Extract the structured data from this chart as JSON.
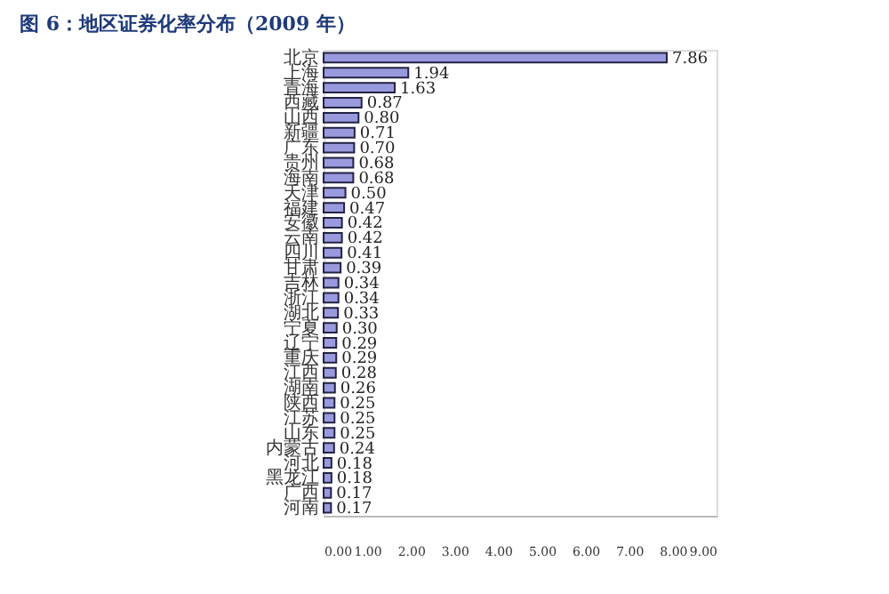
{
  "chart_data": {
    "type": "bar",
    "orientation": "horizontal",
    "title": "图 6：地区证券化率分布（2009 年）",
    "categories": [
      "北京",
      "上海",
      "青海",
      "西藏",
      "山西",
      "新疆",
      "广东",
      "贵州",
      "海南",
      "天津",
      "福建",
      "安徽",
      "云南",
      "四川",
      "甘肃",
      "吉林",
      "浙江",
      "湖北",
      "宁夏",
      "辽宁",
      "重庆",
      "江西",
      "湖南",
      "陕西",
      "江苏",
      "山东",
      "内蒙古",
      "河北",
      "黑龙江",
      "广西",
      "河南"
    ],
    "values": [
      7.86,
      1.94,
      1.63,
      0.87,
      0.8,
      0.71,
      0.7,
      0.68,
      0.68,
      0.5,
      0.47,
      0.42,
      0.42,
      0.41,
      0.39,
      0.34,
      0.34,
      0.33,
      0.3,
      0.29,
      0.29,
      0.28,
      0.26,
      0.25,
      0.25,
      0.25,
      0.24,
      0.18,
      0.18,
      0.17,
      0.17
    ],
    "color": "#9999dd",
    "value_labels": [
      "7.86",
      "1.94",
      "1.63",
      "0.87",
      "0.80",
      "0.71",
      "0.70",
      "0.68",
      "0.68",
      "0.50",
      "0.47",
      "0.42",
      "0.42",
      "0.41",
      "0.39",
      "0.34",
      "0.34",
      "0.33",
      "0.30",
      "0.29",
      "0.29",
      "0.28",
      "0.26",
      "0.25",
      "0.25",
      "0.25",
      "0.24",
      "0.18",
      "0.18",
      "0.17",
      "0.17"
    ],
    "xlim": [
      0,
      9
    ],
    "xticks": [
      {
        "value": 0,
        "label": "0.00"
      },
      {
        "value": 1,
        "label": "1.00"
      },
      {
        "value": 2,
        "label": "2.00"
      },
      {
        "value": 3,
        "label": "3.00"
      },
      {
        "value": 4,
        "label": "4.00"
      },
      {
        "value": 5,
        "label": "5.00"
      },
      {
        "value": 6,
        "label": "6.00"
      },
      {
        "value": 7,
        "label": "7.00"
      },
      {
        "value": 8,
        "label": "8.00"
      },
      {
        "value": 9,
        "label": "9.00"
      }
    ],
    "grid": false
  }
}
